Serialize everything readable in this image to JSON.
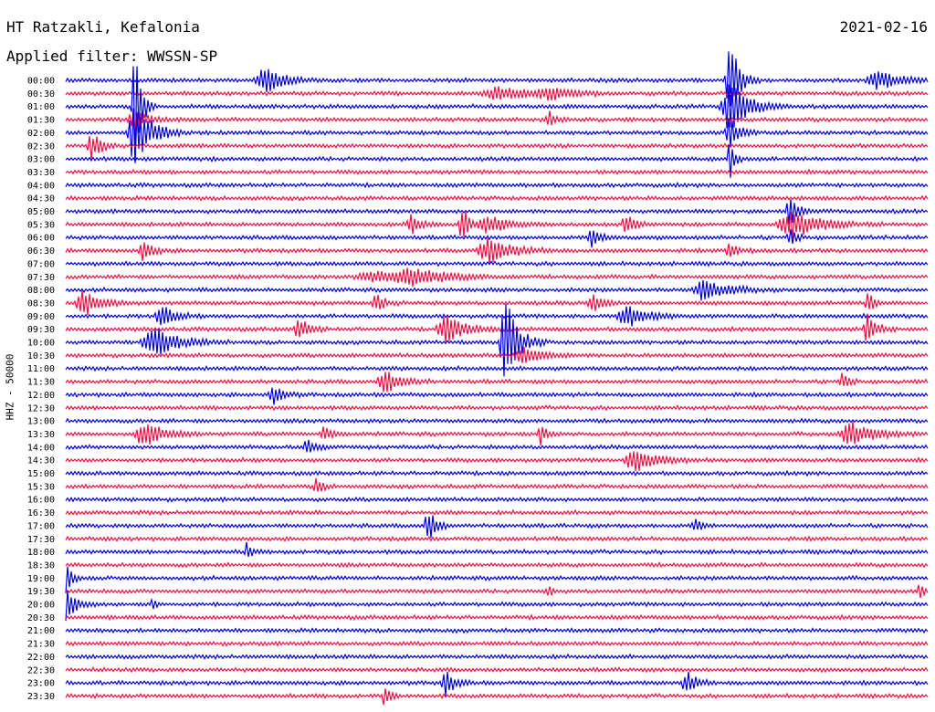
{
  "header": {
    "station": "HT Ratzakli, Kefalonia",
    "date": "2021-02-16",
    "filter": "Applied filter: WWSSN-SP"
  },
  "chart_data": {
    "type": "line",
    "title": "HT Ratzakli, Kefalonia",
    "subtitle": "Applied filter: WWSSN-SP",
    "ylabel": "HHZ - 50000",
    "colors": {
      "even": "#0000dd",
      "odd": "#ee1144"
    },
    "rows": [
      "00:00",
      "00:30",
      "01:00",
      "01:30",
      "02:00",
      "02:30",
      "03:00",
      "03:30",
      "04:00",
      "04:30",
      "05:00",
      "05:30",
      "06:00",
      "06:30",
      "07:00",
      "07:30",
      "08:00",
      "08:30",
      "09:00",
      "09:30",
      "10:00",
      "10:30",
      "11:00",
      "11:30",
      "12:00",
      "12:30",
      "13:00",
      "13:30",
      "14:00",
      "14:30",
      "15:00",
      "15:30",
      "16:00",
      "16:30",
      "17:00",
      "17:30",
      "18:00",
      "18:30",
      "19:00",
      "19:30",
      "20:00",
      "20:30",
      "21:00",
      "21:30",
      "22:00",
      "22:30",
      "23:00",
      "23:30"
    ],
    "events": [
      {
        "row": 0,
        "x": 0.23,
        "amp": 14,
        "dur": 0.012
      },
      {
        "row": 0,
        "x": 0.77,
        "amp": 48,
        "dur": 0.006
      },
      {
        "row": 0,
        "x": 0.94,
        "amp": 10,
        "dur": 0.015
      },
      {
        "row": 1,
        "x": 0.5,
        "amp": 7,
        "dur": 0.02
      },
      {
        "row": 1,
        "x": 0.56,
        "amp": 7,
        "dur": 0.015
      },
      {
        "row": 2,
        "x": 0.08,
        "amp": 75,
        "dur": 0.004
      },
      {
        "row": 2,
        "x": 0.77,
        "amp": 30,
        "dur": 0.012
      },
      {
        "row": 3,
        "x": 0.56,
        "amp": 10,
        "dur": 0.004
      },
      {
        "row": 3,
        "x": 0.08,
        "amp": 10,
        "dur": 0.01
      },
      {
        "row": 4,
        "x": 0.08,
        "amp": 40,
        "dur": 0.01
      },
      {
        "row": 4,
        "x": 0.77,
        "amp": 18,
        "dur": 0.006
      },
      {
        "row": 5,
        "x": 0.03,
        "amp": 16,
        "dur": 0.006
      },
      {
        "row": 6,
        "x": 0.77,
        "amp": 25,
        "dur": 0.003
      },
      {
        "row": 10,
        "x": 0.84,
        "amp": 18,
        "dur": 0.005
      },
      {
        "row": 11,
        "x": 0.4,
        "amp": 12,
        "dur": 0.006
      },
      {
        "row": 11,
        "x": 0.46,
        "amp": 20,
        "dur": 0.005
      },
      {
        "row": 11,
        "x": 0.49,
        "amp": 10,
        "dur": 0.012
      },
      {
        "row": 11,
        "x": 0.65,
        "amp": 11,
        "dur": 0.006
      },
      {
        "row": 11,
        "x": 0.84,
        "amp": 16,
        "dur": 0.018
      },
      {
        "row": 12,
        "x": 0.61,
        "amp": 10,
        "dur": 0.006
      },
      {
        "row": 12,
        "x": 0.84,
        "amp": 10,
        "dur": 0.004
      },
      {
        "row": 13,
        "x": 0.09,
        "amp": 12,
        "dur": 0.006
      },
      {
        "row": 13,
        "x": 0.49,
        "amp": 14,
        "dur": 0.015
      },
      {
        "row": 13,
        "x": 0.77,
        "amp": 9,
        "dur": 0.006
      },
      {
        "row": 15,
        "x": 0.36,
        "amp": 6,
        "dur": 0.03
      },
      {
        "row": 15,
        "x": 0.4,
        "amp": 8,
        "dur": 0.02
      },
      {
        "row": 16,
        "x": 0.74,
        "amp": 12,
        "dur": 0.015
      },
      {
        "row": 17,
        "x": 0.02,
        "amp": 16,
        "dur": 0.01
      },
      {
        "row": 17,
        "x": 0.36,
        "amp": 9,
        "dur": 0.006
      },
      {
        "row": 17,
        "x": 0.61,
        "amp": 11,
        "dur": 0.006
      },
      {
        "row": 17,
        "x": 0.93,
        "amp": 14,
        "dur": 0.004
      },
      {
        "row": 18,
        "x": 0.11,
        "amp": 14,
        "dur": 0.008
      },
      {
        "row": 18,
        "x": 0.65,
        "amp": 13,
        "dur": 0.012
      },
      {
        "row": 19,
        "x": 0.27,
        "amp": 14,
        "dur": 0.006
      },
      {
        "row": 19,
        "x": 0.44,
        "amp": 16,
        "dur": 0.012
      },
      {
        "row": 19,
        "x": 0.93,
        "amp": 18,
        "dur": 0.006
      },
      {
        "row": 20,
        "x": 0.1,
        "amp": 18,
        "dur": 0.015
      },
      {
        "row": 20,
        "x": 0.51,
        "amp": 50,
        "dur": 0.008
      },
      {
        "row": 21,
        "x": 0.53,
        "amp": 10,
        "dur": 0.012
      },
      {
        "row": 23,
        "x": 0.37,
        "amp": 14,
        "dur": 0.01
      },
      {
        "row": 23,
        "x": 0.9,
        "amp": 10,
        "dur": 0.004
      },
      {
        "row": 24,
        "x": 0.24,
        "amp": 12,
        "dur": 0.006
      },
      {
        "row": 27,
        "x": 0.09,
        "amp": 14,
        "dur": 0.012
      },
      {
        "row": 27,
        "x": 0.3,
        "amp": 8,
        "dur": 0.006
      },
      {
        "row": 27,
        "x": 0.55,
        "amp": 14,
        "dur": 0.003
      },
      {
        "row": 27,
        "x": 0.91,
        "amp": 14,
        "dur": 0.015
      },
      {
        "row": 28,
        "x": 0.28,
        "amp": 8,
        "dur": 0.006
      },
      {
        "row": 29,
        "x": 0.66,
        "amp": 14,
        "dur": 0.014
      },
      {
        "row": 31,
        "x": 0.29,
        "amp": 10,
        "dur": 0.004
      },
      {
        "row": 34,
        "x": 0.42,
        "amp": 20,
        "dur": 0.005
      },
      {
        "row": 34,
        "x": 0.73,
        "amp": 8,
        "dur": 0.004
      },
      {
        "row": 36,
        "x": 0.21,
        "amp": 10,
        "dur": 0.003
      },
      {
        "row": 38,
        "x": 0.0,
        "amp": 30,
        "dur": 0.003
      },
      {
        "row": 39,
        "x": 0.56,
        "amp": 10,
        "dur": 0.002
      },
      {
        "row": 39,
        "x": 0.99,
        "amp": 12,
        "dur": 0.002
      },
      {
        "row": 40,
        "x": 0.0,
        "amp": 20,
        "dur": 0.006
      },
      {
        "row": 40,
        "x": 0.1,
        "amp": 10,
        "dur": 0.002
      },
      {
        "row": 47,
        "x": 0.37,
        "amp": 14,
        "dur": 0.003
      },
      {
        "row": 46,
        "x": 0.44,
        "amp": 14,
        "dur": 0.006
      },
      {
        "row": 46,
        "x": 0.72,
        "amp": 14,
        "dur": 0.006
      }
    ]
  }
}
